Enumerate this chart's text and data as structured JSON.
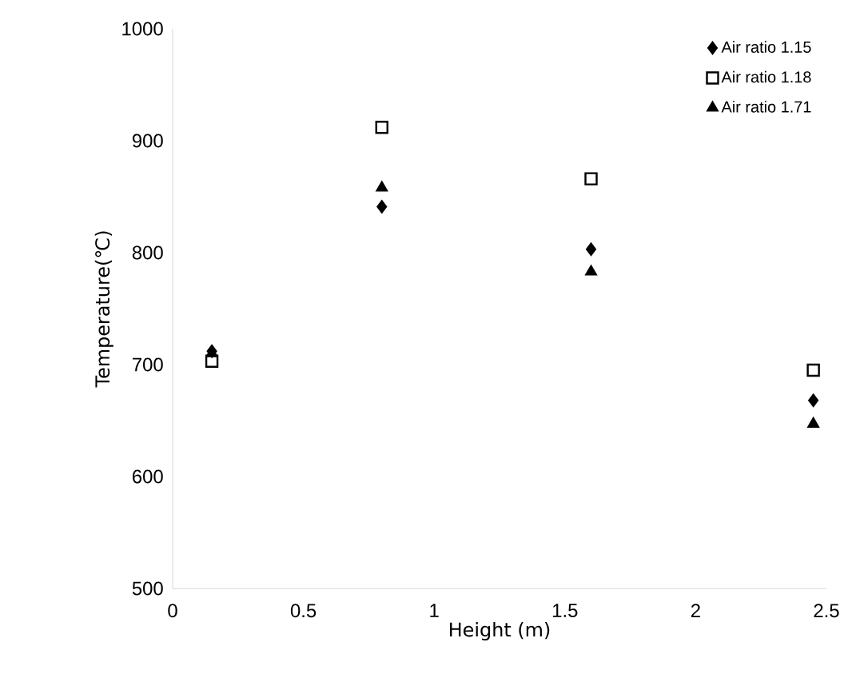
{
  "chart_data": {
    "type": "scatter",
    "xlabel": "Height (m)",
    "ylabel": "Temperature(℃)",
    "xlim": [
      0,
      2.5
    ],
    "ylim": [
      500,
      1000
    ],
    "xticks": [
      0,
      0.5,
      1,
      1.5,
      2,
      2.5
    ],
    "yticks": [
      500,
      600,
      700,
      800,
      900,
      1000
    ],
    "legend": "top right",
    "grid": false,
    "series": [
      {
        "name": "Air ratio 1.15",
        "color": "#000000",
        "marker": "diamond",
        "x": [
          0.15,
          0.8,
          1.6,
          2.45
        ],
        "values": [
          712,
          841,
          803,
          668
        ]
      },
      {
        "name": "Air ratio 1.18",
        "color": "#000000",
        "marker": "square",
        "x": [
          0.15,
          0.8,
          1.6,
          2.45
        ],
        "values": [
          703,
          912,
          866,
          695
        ]
      },
      {
        "name": "Air ratio 1.71",
        "color": "#000000",
        "marker": "triangle",
        "x": [
          0.15,
          0.8,
          1.6,
          2.45
        ],
        "values": [
          710,
          858,
          783,
          647
        ]
      }
    ]
  }
}
